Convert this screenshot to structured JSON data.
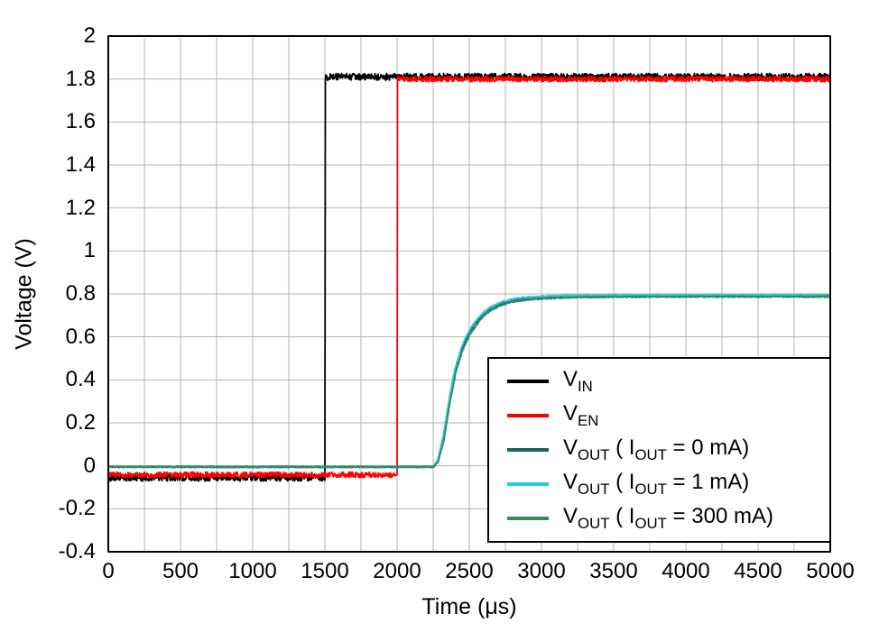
{
  "chart_data": {
    "type": "line",
    "title": "",
    "xlabel": "Time (μs)",
    "ylabel": "Voltage (V)",
    "xlim": [
      0,
      5000
    ],
    "ylim": [
      -0.4,
      2
    ],
    "x_ticks": [
      0,
      500,
      1000,
      1500,
      2000,
      2500,
      3000,
      3500,
      4000,
      4500,
      5000
    ],
    "x_tick_labels": [
      "0",
      "500",
      "1000",
      "1500",
      "2000",
      "2500",
      "3000",
      "3500",
      "4000",
      "4500",
      "5000"
    ],
    "y_ticks": [
      2,
      1.8,
      1.6,
      1.4,
      1.2,
      1,
      0.8,
      0.6,
      0.4,
      0.2,
      0,
      -0.2,
      -0.4
    ],
    "y_tick_labels": [
      "2",
      "1.8",
      "1.6",
      "1.4",
      "1.2",
      "1",
      "0.8",
      "0.6",
      "0.4",
      "0.2",
      "0",
      "-0.2",
      "-0.4"
    ],
    "grid": true,
    "x_grid_step": 250,
    "y_grid_step": 0.2,
    "grid_color": "#b3b3b3",
    "axis_color": "#000000",
    "series": [
      {
        "id": "vin",
        "name": "V_IN",
        "color": "#000000",
        "noise": 0.016,
        "width": 1.8,
        "points": [
          [
            0,
            -0.055
          ],
          [
            1500,
            -0.055
          ],
          [
            1500,
            1.81
          ],
          [
            5000,
            1.81
          ]
        ]
      },
      {
        "id": "ven",
        "name": "V_EN",
        "color": "#ff0000",
        "noise": 0.013,
        "width": 1.8,
        "points": [
          [
            0,
            -0.042
          ],
          [
            2000,
            -0.042
          ],
          [
            2000,
            1.8
          ],
          [
            5000,
            1.8
          ]
        ]
      },
      {
        "id": "vout-0ma",
        "name": "V_OUT (I_OUT = 0 mA)",
        "color": "#1c5f6e",
        "noise": 0.0035,
        "width": 1.8,
        "points": [
          [
            0,
            -0.005
          ],
          [
            2250,
            -0.005
          ],
          [
            2280,
            0.02
          ],
          [
            2320,
            0.13
          ],
          [
            2360,
            0.3
          ],
          [
            2400,
            0.44
          ],
          [
            2450,
            0.55
          ],
          [
            2500,
            0.62
          ],
          [
            2550,
            0.67
          ],
          [
            2600,
            0.705
          ],
          [
            2650,
            0.73
          ],
          [
            2700,
            0.748
          ],
          [
            2750,
            0.76
          ],
          [
            2800,
            0.768
          ],
          [
            2850,
            0.774
          ],
          [
            2900,
            0.778
          ],
          [
            3000,
            0.783
          ],
          [
            3100,
            0.786
          ],
          [
            3250,
            0.788
          ],
          [
            3500,
            0.79
          ],
          [
            4000,
            0.791
          ],
          [
            5000,
            0.791
          ]
        ]
      },
      {
        "id": "vout-1ma",
        "name": "V_OUT (I_OUT = 1 mA)",
        "color": "#2ec7e6",
        "noise": 0.0035,
        "width": 1.8,
        "points": [
          [
            0,
            -0.005
          ],
          [
            2250,
            -0.005
          ],
          [
            2280,
            0.025
          ],
          [
            2320,
            0.14
          ],
          [
            2360,
            0.31
          ],
          [
            2400,
            0.45
          ],
          [
            2450,
            0.56
          ],
          [
            2500,
            0.63
          ],
          [
            2550,
            0.68
          ],
          [
            2600,
            0.715
          ],
          [
            2650,
            0.74
          ],
          [
            2700,
            0.757
          ],
          [
            2750,
            0.768
          ],
          [
            2800,
            0.776
          ],
          [
            2850,
            0.781
          ],
          [
            2900,
            0.785
          ],
          [
            3000,
            0.789
          ],
          [
            3100,
            0.792
          ],
          [
            3250,
            0.794
          ],
          [
            3500,
            0.795
          ],
          [
            4000,
            0.796
          ],
          [
            5000,
            0.796
          ]
        ]
      },
      {
        "id": "vout-300ma",
        "name": "V_OUT (I_OUT = 300 mA)",
        "color": "#338a5c",
        "noise": 0.0035,
        "width": 1.8,
        "points": [
          [
            0,
            -0.005
          ],
          [
            2255,
            -0.005
          ],
          [
            2285,
            0.02
          ],
          [
            2325,
            0.12
          ],
          [
            2365,
            0.29
          ],
          [
            2405,
            0.43
          ],
          [
            2455,
            0.54
          ],
          [
            2505,
            0.61
          ],
          [
            2555,
            0.66
          ],
          [
            2605,
            0.7
          ],
          [
            2655,
            0.725
          ],
          [
            2705,
            0.743
          ],
          [
            2755,
            0.755
          ],
          [
            2805,
            0.763
          ],
          [
            2855,
            0.769
          ],
          [
            2905,
            0.773
          ],
          [
            3005,
            0.778
          ],
          [
            3105,
            0.781
          ],
          [
            3255,
            0.784
          ],
          [
            3505,
            0.786
          ],
          [
            4005,
            0.787
          ],
          [
            5005,
            0.787
          ]
        ]
      }
    ],
    "legend": {
      "position": "bottom-right",
      "entries": [
        {
          "id": "vin",
          "color": "#000000",
          "segments": [
            {
              "t": "V"
            },
            {
              "t": "IN",
              "sub": true
            }
          ]
        },
        {
          "id": "ven",
          "color": "#ff0000",
          "segments": [
            {
              "t": "V"
            },
            {
              "t": "EN",
              "sub": true
            }
          ]
        },
        {
          "id": "vout-0ma",
          "color": "#1c5f6e",
          "segments": [
            {
              "t": "V"
            },
            {
              "t": "OUT",
              "sub": true
            },
            {
              "t": " ( I"
            },
            {
              "t": "OUT",
              "sub": true
            },
            {
              "t": " = 0 mA)"
            }
          ]
        },
        {
          "id": "vout-1ma",
          "color": "#2ec7e6",
          "segments": [
            {
              "t": "V"
            },
            {
              "t": "OUT",
              "sub": true
            },
            {
              "t": " ( I"
            },
            {
              "t": "OUT",
              "sub": true
            },
            {
              "t": " = 1 mA)"
            }
          ]
        },
        {
          "id": "vout-300ma",
          "color": "#338a5c",
          "segments": [
            {
              "t": "V"
            },
            {
              "t": "OUT",
              "sub": true
            },
            {
              "t": " ( I"
            },
            {
              "t": "OUT",
              "sub": true
            },
            {
              "t": " = 300 mA)"
            }
          ]
        }
      ]
    }
  }
}
